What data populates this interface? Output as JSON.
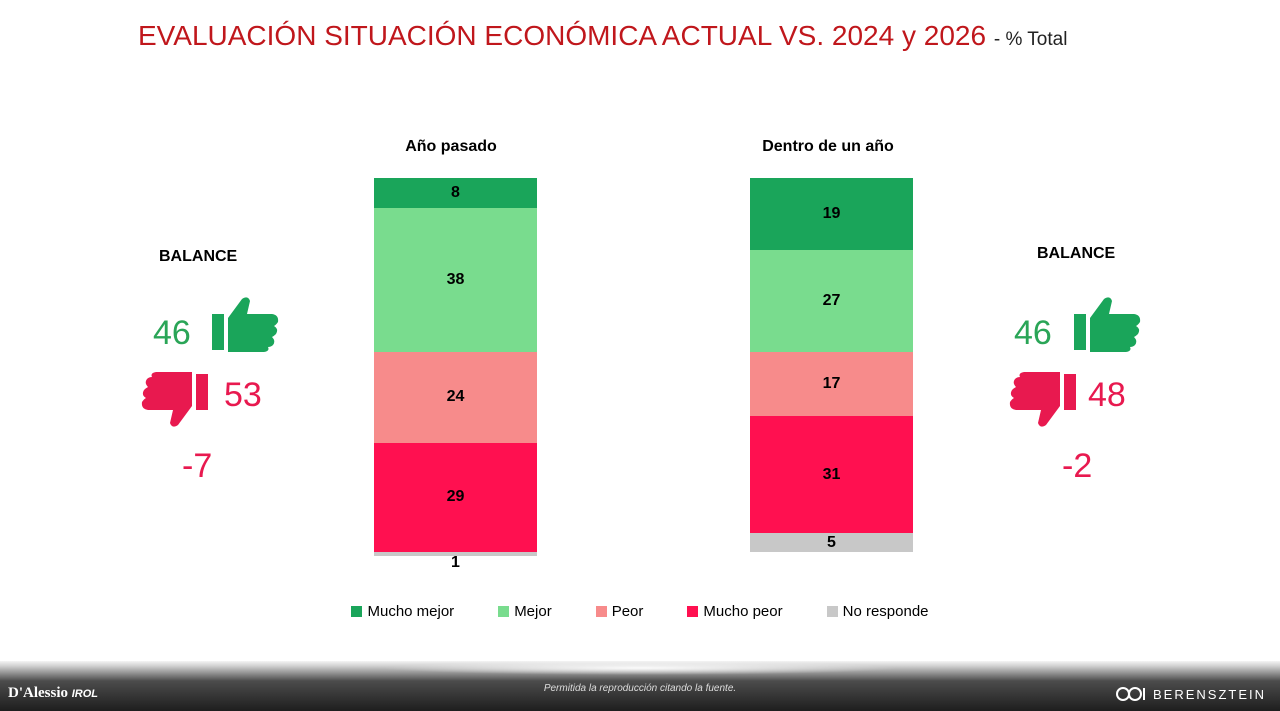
{
  "title": {
    "main": "EVALUACIÓN SITUACIÓN ECONÓMICA ACTUAL VS. 2024 y 2026",
    "sub": "- % Total"
  },
  "colors": {
    "mucho_mejor": "#1aa55a",
    "mejor": "#79dc8e",
    "peor": "#f78b8b",
    "mucho_peor": "#ff1050",
    "no_responde": "#c8c8c8",
    "title": "#c0171c",
    "positive": "#2aa557",
    "negative": "#e8194f"
  },
  "chart_data": {
    "type": "bar",
    "stacked": true,
    "categories": [
      "Año pasado",
      "Dentro de un año"
    ],
    "series": [
      {
        "name": "Mucho mejor",
        "values": [
          8,
          19
        ]
      },
      {
        "name": "Mejor",
        "values": [
          38,
          27
        ]
      },
      {
        "name": "Peor",
        "values": [
          24,
          17
        ]
      },
      {
        "name": "Mucho peor",
        "values": [
          29,
          31
        ]
      },
      {
        "name": "No responde",
        "values": [
          1,
          5
        ]
      }
    ],
    "legend_position": "bottom"
  },
  "balance": {
    "left": {
      "label": "BALANCE",
      "positive": "46",
      "negative": "53",
      "net": "-7"
    },
    "right": {
      "label": "BALANCE",
      "positive": "46",
      "negative": "48",
      "net": "-2"
    }
  },
  "icons": {
    "up": "thumbs-up-icon",
    "down": "thumbs-down-icon"
  },
  "footer": {
    "left_logo": "D'Alessio",
    "left_logo_sub": "IROL",
    "center": "Permitida la reproducción citando la fuente.",
    "right_logo": "BERENSZTEIN"
  }
}
